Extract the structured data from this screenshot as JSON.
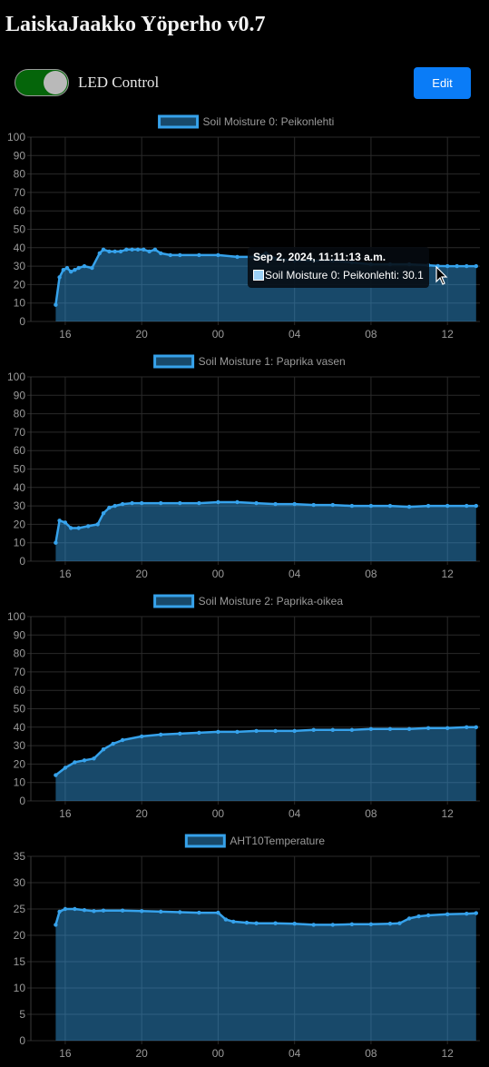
{
  "header": {
    "title": "LaiskaJaakko Yöperho v0.7"
  },
  "controls": {
    "led_label": "LED Control",
    "led_on": true,
    "edit_label": "Edit"
  },
  "colors": {
    "line": "#36a2eb",
    "fill": "rgba(54,162,235,0.45)",
    "grid": "#2a2a2a",
    "tick": "#9a9a9a",
    "toggle_on": "#05650a",
    "edit": "#0a7cf7"
  },
  "tooltip": {
    "title": "Sep 2, 2024, 11:11:13 a.m.",
    "body": "Soil Moisture 0: Peikonlehti: 30.1"
  },
  "chart_data": [
    {
      "type": "area",
      "legend": "Soil Moisture 0: Peikonlehti",
      "x_ticks": [
        "16",
        "20",
        "00",
        "04",
        "08",
        "12"
      ],
      "ylim": [
        0,
        100
      ],
      "y_ticks": [
        0,
        10,
        20,
        30,
        40,
        50,
        60,
        70,
        80,
        90,
        100
      ],
      "x_unit": "hours since 15:00",
      "x": [
        0.5,
        0.7,
        0.9,
        1.1,
        1.3,
        1.5,
        1.7,
        2.0,
        2.4,
        2.8,
        3.0,
        3.3,
        3.6,
        3.9,
        4.2,
        4.5,
        4.8,
        5.1,
        5.4,
        5.7,
        6.0,
        6.5,
        7.0,
        8.0,
        9.0,
        10.0,
        11.0,
        11.5,
        12.0,
        13.0,
        14.0,
        15.0,
        16.0,
        17.0,
        18.0,
        19.0,
        20.0,
        20.5,
        21.0,
        21.5,
        22.0,
        22.5
      ],
      "y": [
        9,
        24,
        28,
        29,
        27,
        28,
        29,
        30,
        29,
        37,
        39,
        38,
        38,
        38,
        39,
        39,
        39,
        39,
        38,
        39,
        37,
        36,
        36,
        36,
        36,
        35,
        35,
        37,
        34,
        33,
        33,
        33,
        32,
        31,
        31,
        31,
        30.5,
        30.1,
        30,
        30,
        30,
        30
      ]
    },
    {
      "type": "area",
      "legend": "Soil Moisture 1: Paprika vasen",
      "x_ticks": [
        "16",
        "20",
        "00",
        "04",
        "08",
        "12"
      ],
      "ylim": [
        0,
        100
      ],
      "y_ticks": [
        0,
        10,
        20,
        30,
        40,
        50,
        60,
        70,
        80,
        90,
        100
      ],
      "x_unit": "hours since 15:00",
      "x": [
        0.5,
        0.7,
        1.0,
        1.3,
        1.7,
        2.2,
        2.7,
        3.0,
        3.3,
        3.6,
        4.0,
        4.5,
        5.0,
        6.0,
        7.0,
        8.0,
        9.0,
        10.0,
        11.0,
        12.0,
        13.0,
        14.0,
        15.0,
        16.0,
        17.0,
        18.0,
        19.0,
        20.0,
        21.0,
        22.0,
        22.5
      ],
      "y": [
        10,
        22,
        21,
        18,
        18,
        19,
        20,
        26,
        29,
        30,
        31,
        31.5,
        31.5,
        31.5,
        31.5,
        31.5,
        32,
        32,
        31.5,
        31,
        31,
        30.5,
        30.5,
        30,
        30,
        30,
        29.5,
        30,
        30,
        30,
        30
      ]
    },
    {
      "type": "area",
      "legend": "Soil Moisture 2: Paprika-oikea",
      "x_ticks": [
        "16",
        "20",
        "00",
        "04",
        "08",
        "12"
      ],
      "ylim": [
        0,
        100
      ],
      "y_ticks": [
        0,
        10,
        20,
        30,
        40,
        50,
        60,
        70,
        80,
        90,
        100
      ],
      "x_unit": "hours since 15:00",
      "x": [
        0.5,
        1.0,
        1.5,
        2.0,
        2.5,
        3.0,
        3.5,
        4.0,
        5.0,
        6.0,
        7.0,
        8.0,
        9.0,
        10.0,
        11.0,
        12.0,
        13.0,
        14.0,
        15.0,
        16.0,
        17.0,
        18.0,
        19.0,
        20.0,
        21.0,
        22.0,
        22.5
      ],
      "y": [
        14,
        18,
        21,
        22,
        23,
        28,
        31,
        33,
        35,
        36,
        36.5,
        37,
        37.5,
        37.5,
        38,
        38,
        38,
        38.5,
        38.5,
        38.5,
        39,
        39,
        39,
        39.5,
        39.5,
        40,
        40
      ]
    },
    {
      "type": "area",
      "legend": "AHT10Temperature",
      "x_ticks": [
        "16",
        "20",
        "00",
        "04",
        "08",
        "12"
      ],
      "ylim": [
        0,
        35
      ],
      "y_ticks": [
        0,
        5,
        10,
        15,
        20,
        25,
        30,
        35
      ],
      "x_unit": "hours since 15:00",
      "x": [
        0.5,
        0.7,
        1.0,
        1.5,
        2.0,
        2.5,
        3.0,
        4.0,
        5.0,
        6.0,
        7.0,
        8.0,
        9.0,
        9.4,
        9.8,
        10.5,
        11.0,
        12.0,
        13.0,
        14.0,
        15.0,
        16.0,
        17.0,
        18.0,
        18.5,
        19.0,
        19.5,
        20.0,
        21.0,
        22.0,
        22.5
      ],
      "y": [
        22,
        24.5,
        25,
        25,
        24.8,
        24.6,
        24.7,
        24.7,
        24.6,
        24.5,
        24.4,
        24.3,
        24.3,
        23,
        22.6,
        22.4,
        22.3,
        22.3,
        22.2,
        22.0,
        22.0,
        22.1,
        22.1,
        22.2,
        22.3,
        23.2,
        23.6,
        23.8,
        24.0,
        24.1,
        24.2
      ]
    }
  ]
}
